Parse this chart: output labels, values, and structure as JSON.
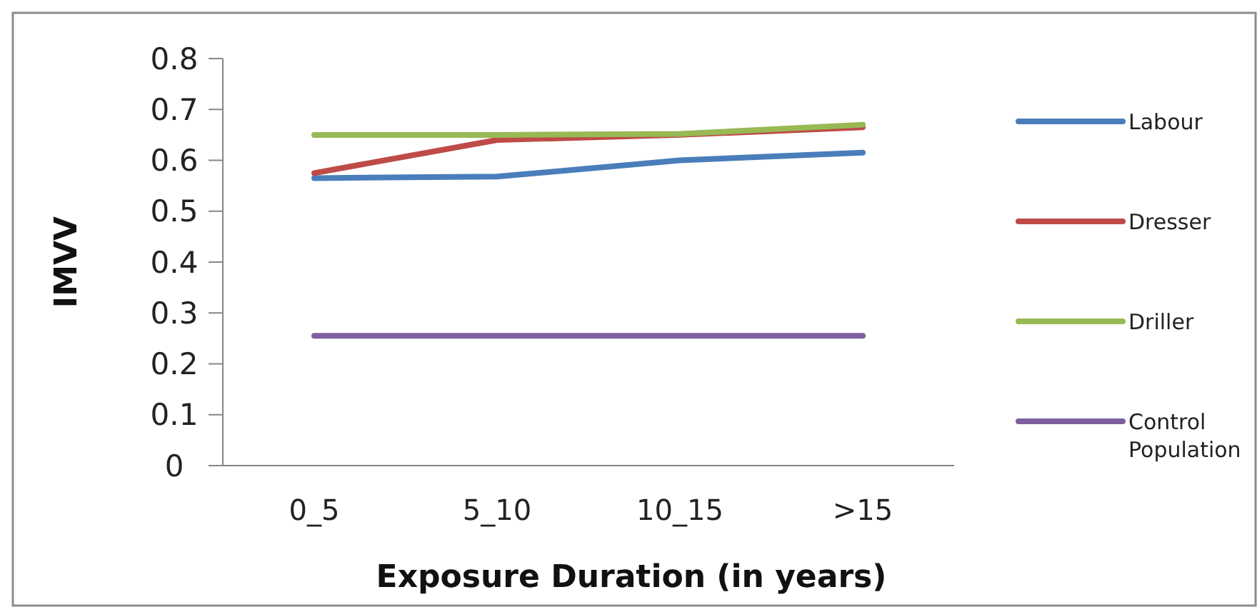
{
  "chart_data": {
    "type": "line",
    "xlabel": "Exposure Duration (in years)",
    "ylabel": "IMVV",
    "categories": [
      "0_5",
      "5_10",
      "10_15",
      ">15"
    ],
    "series": [
      {
        "name": "Labour",
        "color": "#4a7ebb",
        "values": [
          0.565,
          0.568,
          0.6,
          0.615
        ]
      },
      {
        "name": "Dresser",
        "color": "#be4b48",
        "values": [
          0.575,
          0.64,
          0.65,
          0.665
        ]
      },
      {
        "name": "Driller",
        "color": "#98b954",
        "values": [
          0.65,
          0.65,
          0.652,
          0.67
        ]
      },
      {
        "name": "Control Population",
        "color": "#7d60a0",
        "values": [
          0.255,
          0.255,
          0.255,
          0.255
        ]
      }
    ],
    "ylim": [
      0,
      0.8
    ],
    "yticks": [
      0,
      0.1,
      0.2,
      0.3,
      0.4,
      0.5,
      0.6,
      0.7,
      0.8
    ],
    "grid": false,
    "legend": "right",
    "marker": "none",
    "line_style": "solid"
  }
}
